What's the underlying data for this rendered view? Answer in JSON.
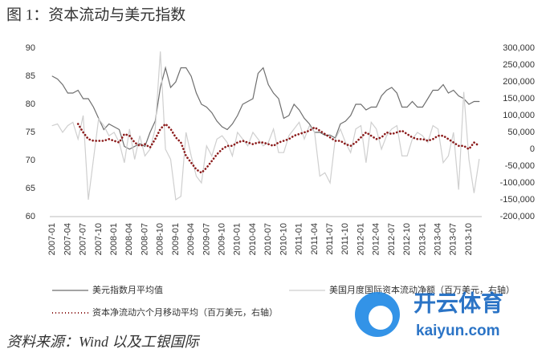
{
  "chart_data": {
    "type": "line",
    "title": "图 1：资本流动与美元指数",
    "source": "资料来源：Wind 以及工银国际",
    "categories": [
      "2007-01",
      null,
      null,
      "2007-04",
      null,
      null,
      "2007-07",
      null,
      null,
      "2007-10",
      null,
      null,
      "2008-01",
      null,
      null,
      "2008-04",
      null,
      null,
      "2008-07",
      null,
      null,
      "2008-10",
      null,
      null,
      "2009-01",
      null,
      null,
      "2009-04",
      null,
      null,
      "2009-07",
      null,
      null,
      "2009-10",
      null,
      null,
      "2010-01",
      null,
      null,
      "2010-04",
      null,
      null,
      "2010-07",
      null,
      null,
      "2010-10",
      null,
      null,
      "2011-01",
      null,
      null,
      "2011-04",
      null,
      null,
      "2011-07",
      null,
      null,
      "2011-10",
      null,
      null,
      "2012-01",
      null,
      null,
      "2012-04",
      null,
      null,
      "2012-07",
      null,
      null,
      "2012-10",
      null,
      null,
      "2013-01",
      null,
      null,
      "2013-04",
      null,
      null,
      "2013-07",
      null,
      null,
      "2013-10",
      null,
      null
    ],
    "series": [
      {
        "name": "美元指数月平均值",
        "color": "#6e6e6e",
        "style": "solid",
        "axis": "y",
        "values": [
          85,
          84.5,
          83.5,
          82,
          82,
          82.5,
          81,
          81,
          79.5,
          77.5,
          75.5,
          76.5,
          76,
          75.5,
          72.5,
          72,
          72.5,
          73,
          72.5,
          75,
          77,
          83,
          86.5,
          83,
          84,
          86.5,
          86.5,
          85,
          82,
          80,
          79.5,
          78.5,
          77,
          76,
          75.5,
          76.5,
          78,
          80,
          80.5,
          81,
          85.5,
          86.5,
          83.5,
          82,
          81,
          77.5,
          78,
          80,
          79,
          77.5,
          76.5,
          75,
          75,
          74.5,
          74.5,
          74,
          76.5,
          77,
          78,
          80,
          80,
          79,
          79.5,
          79.5,
          81.5,
          82.5,
          83,
          82,
          79.5,
          79.5,
          80.5,
          79.5,
          79.5,
          81,
          82.5,
          82.5,
          83.5,
          82,
          82.5,
          81.5,
          81,
          80,
          80.5,
          80.5
        ]
      },
      {
        "name": "美国月度国际资本流动净额（百万美元，右轴）",
        "color": "#cfcfcf",
        "style": "solid",
        "axis": "y2",
        "values": [
          70000,
          75000,
          50000,
          70000,
          80000,
          30000,
          100000,
          -150000,
          -30000,
          90000,
          70000,
          40000,
          50000,
          20000,
          -40000,
          60000,
          -30000,
          40000,
          -20000,
          0,
          60000,
          290000,
          0,
          -30000,
          -150000,
          -140000,
          50000,
          -20000,
          -80000,
          -100000,
          10000,
          -20000,
          30000,
          40000,
          20000,
          -20000,
          50000,
          30000,
          10000,
          50000,
          30000,
          10000,
          20000,
          60000,
          -10000,
          -10000,
          40000,
          60000,
          80000,
          30000,
          70000,
          50000,
          -80000,
          -70000,
          -100000,
          30000,
          60000,
          20000,
          -10000,
          60000,
          70000,
          -40000,
          80000,
          60000,
          0,
          40000,
          60000,
          70000,
          -20000,
          -20000,
          30000,
          50000,
          40000,
          20000,
          70000,
          60000,
          -40000,
          -20000,
          50000,
          -120000,
          170000,
          -30000,
          -130000,
          -30000
        ]
      },
      {
        "name": "资本净流动六个月移动平均（百万美元，右轴）",
        "color": "#8b1a1a",
        "style": "dotted",
        "axis": "y2",
        "values": [
          null,
          null,
          null,
          null,
          null,
          75000,
          50000,
          30000,
          25000,
          25000,
          25000,
          30000,
          25000,
          20000,
          45000,
          40000,
          20000,
          10000,
          15000,
          5000,
          30000,
          60000,
          75000,
          60000,
          35000,
          20000,
          -20000,
          -40000,
          -60000,
          -70000,
          -55000,
          -35000,
          -15000,
          0,
          10000,
          10000,
          20000,
          25000,
          20000,
          15000,
          20000,
          20000,
          15000,
          10000,
          20000,
          25000,
          30000,
          40000,
          45000,
          50000,
          55000,
          65000,
          55000,
          45000,
          35000,
          25000,
          25000,
          15000,
          10000,
          20000,
          35000,
          50000,
          40000,
          30000,
          35000,
          50000,
          45000,
          50000,
          55000,
          45000,
          35000,
          30000,
          30000,
          25000,
          30000,
          40000,
          40000,
          30000,
          20000,
          10000,
          10000,
          0,
          20000,
          10000
        ]
      }
    ],
    "ylim": [
      60,
      90
    ],
    "yticks": [
      60,
      65,
      70,
      75,
      80,
      85,
      90
    ],
    "y2lim": [
      -200000,
      300000
    ],
    "y2ticks": [
      {
        "value": -200000,
        "label": "-200,000"
      },
      {
        "value": -150000,
        "label": "-150,000"
      },
      {
        "value": -100000,
        "label": "-100,000"
      },
      {
        "value": -50000,
        "label": "-50,000"
      },
      0,
      {
        "value": 50000,
        "label": "50,000"
      },
      {
        "value": 100000,
        "label": "100,000"
      },
      {
        "value": 150000,
        "label": "150,000"
      },
      {
        "value": 200000,
        "label": "200,000"
      },
      {
        "value": 250000,
        "label": "250,000"
      },
      {
        "value": 300000,
        "label": "300,000"
      }
    ],
    "grid": false
  },
  "watermark": {
    "brand": "开云体育",
    "site": "kaiyun.com"
  }
}
